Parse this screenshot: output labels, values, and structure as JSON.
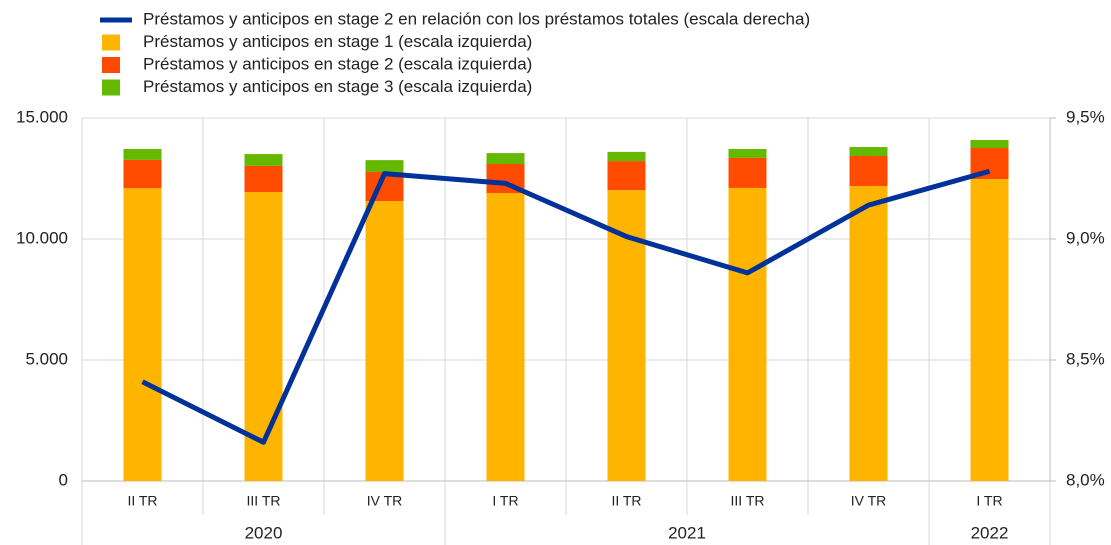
{
  "chart_data": {
    "type": "bar",
    "stacked": true,
    "categories": [
      "II TR",
      "III TR",
      "IV TR",
      "I TR",
      "II TR",
      "III TR",
      "IV TR",
      "I TR"
    ],
    "category_years": [
      "2020",
      "2020",
      "2020",
      "2021",
      "2021",
      "2021",
      "2021",
      "2022"
    ],
    "series": [
      {
        "name": "Préstamos y anticipos en stage 2 en relación con los préstamos totales (escala derecha)",
        "type": "line",
        "axis": "y2",
        "color": "#003299",
        "values": [
          8.41,
          8.16,
          9.27,
          9.23,
          9.01,
          8.86,
          9.14,
          9.28
        ]
      },
      {
        "name": "Préstamos y anticipos en stage 1 (escala izquierda)",
        "color": "#ffb400",
        "values": [
          12100,
          11940,
          11570,
          11900,
          12020,
          12110,
          12190,
          12480
        ]
      },
      {
        "name": "Préstamos y anticipos en stage 2 (escala izquierda)",
        "color": "#ff4b00",
        "values": [
          1170,
          1080,
          1200,
          1200,
          1200,
          1240,
          1240,
          1280
        ]
      },
      {
        "name": "Préstamos y anticipos en stage 3 (escala izquierda)",
        "color": "#65b800",
        "values": [
          450,
          490,
          490,
          450,
          380,
          370,
          370,
          330
        ]
      }
    ],
    "ylim": [
      0,
      15000
    ],
    "yticks": [
      0,
      {
        "value": 5000,
        "label": "5.000"
      },
      {
        "value": 10000,
        "label": "10.000"
      },
      {
        "value": 15000,
        "label": "15.000"
      }
    ],
    "y2lim": [
      8.0,
      9.5
    ],
    "y2ticks": [
      {
        "value": 8.0,
        "label": "8,0%"
      },
      {
        "value": 8.5,
        "label": "8,5%"
      },
      {
        "value": 9.0,
        "label": "9,0%"
      },
      {
        "value": 9.5,
        "label": "9,5%"
      }
    ],
    "grid": true
  }
}
